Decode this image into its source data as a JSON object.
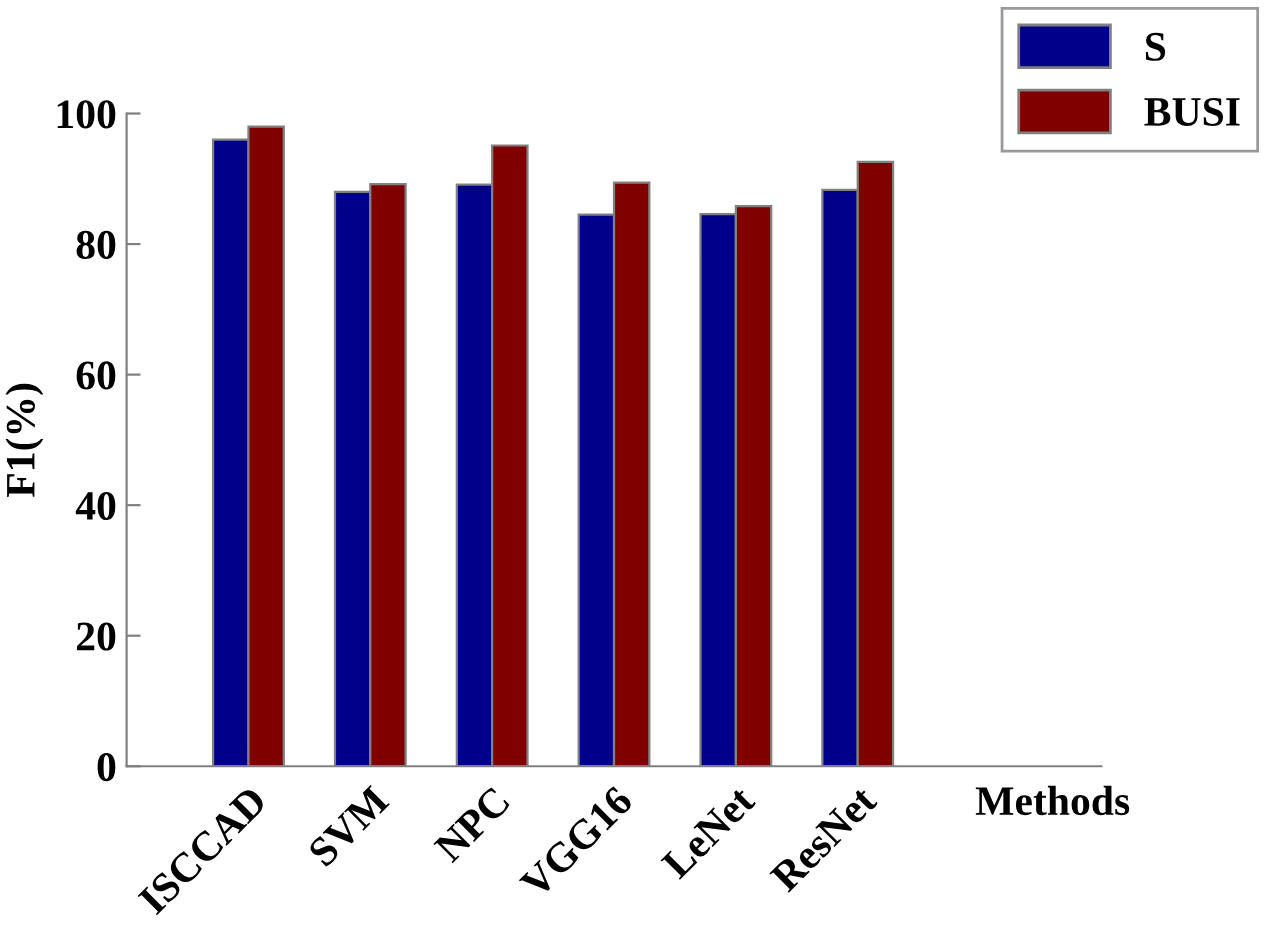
{
  "chart_data": {
    "type": "bar",
    "ylabel": "F1(%)",
    "xlabel": "Methods",
    "categories": [
      "ISCCAD",
      "SVM",
      "NPC",
      "VGG16",
      "LeNet",
      "ResNet"
    ],
    "series": [
      {
        "name": "S",
        "color": "#00008b",
        "values": [
          96.0,
          88.0,
          89.1,
          84.5,
          84.6,
          88.3
        ]
      },
      {
        "name": "BUSI",
        "color": "#800000",
        "values": [
          98.0,
          89.2,
          95.1,
          89.4,
          85.8,
          92.6
        ]
      }
    ],
    "ylim": [
      0,
      100
    ],
    "yticks": [
      0,
      20,
      40,
      60,
      80,
      100
    ],
    "grid": false,
    "legend": "top right"
  }
}
